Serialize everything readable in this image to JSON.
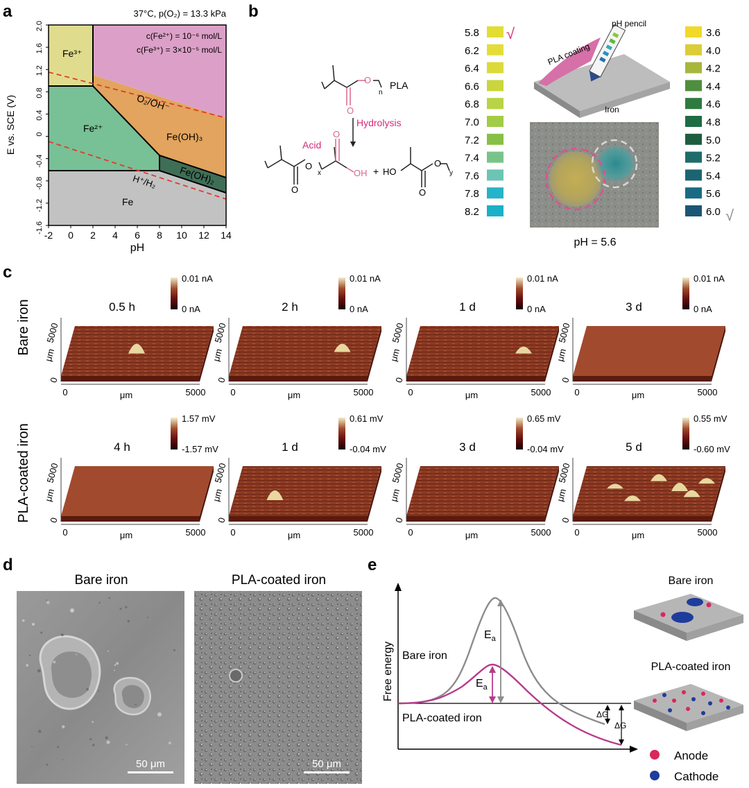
{
  "panels": {
    "a": {
      "letter": "a",
      "conditions": "37°C, p(O₂) = 13.3 kPa",
      "conc_fe2": "c(Fe²⁺) = 10⁻⁶ mol/L",
      "conc_fe3": "c(Fe³⁺) = 3×10⁻⁵ mol/L",
      "ylabel": "E vs. SCE (V)",
      "xlabel": "pH",
      "xticks": [
        "-2",
        "0",
        "2",
        "4",
        "6",
        "8",
        "10",
        "12",
        "14"
      ],
      "yticks": [
        "2.0",
        "1.6",
        "1.2",
        "0.8",
        "0.4",
        "0",
        "-0.4",
        "-0.8",
        "-1.2",
        "-1.6"
      ],
      "regions": {
        "fe3": "Fe³⁺",
        "fe2": "Fe²⁺",
        "o2": "O₂/OH⁻",
        "feoh3": "Fe(OH)₃",
        "feoh2": "Fe(OH)₂",
        "h2": "H⁺/H₂",
        "fe": "Fe"
      },
      "colors": {
        "fe3": "#e0dc8e",
        "o2": "#dca0c8",
        "fe2": "#78c096",
        "feoh3": "#e2a45e",
        "feoh2": "#3f6e56",
        "fe": "#c2c2c2",
        "dash": "#e23a2a"
      }
    },
    "b": {
      "letter": "b",
      "pla_label": "PLA",
      "subscript_n": "n",
      "subscript_x": "x",
      "subscript_y": "y",
      "hydrolysis": "Hydrolysis",
      "acid": "Acid",
      "oh": "OH",
      "ho": "HO",
      "plus": "+",
      "o": "O",
      "left_scale": [
        {
          "label": "5.8",
          "color": "#e3dd32"
        },
        {
          "label": "6.2",
          "color": "#e3dd3a"
        },
        {
          "label": "6.4",
          "color": "#dcda3a"
        },
        {
          "label": "6.6",
          "color": "#cad63c"
        },
        {
          "label": "6.8",
          "color": "#b8d446"
        },
        {
          "label": "7.0",
          "color": "#a2cc46"
        },
        {
          "label": "7.2",
          "color": "#86c046"
        },
        {
          "label": "7.4",
          "color": "#78c488"
        },
        {
          "label": "7.6",
          "color": "#6cc4b4"
        },
        {
          "label": "7.8",
          "color": "#24b4c8"
        },
        {
          "label": "8.2",
          "color": "#1ab0c8"
        }
      ],
      "right_scale": [
        {
          "label": "3.6",
          "color": "#f2d82a"
        },
        {
          "label": "4.0",
          "color": "#dccc38"
        },
        {
          "label": "4.2",
          "color": "#a8b63c"
        },
        {
          "label": "4.4",
          "color": "#4e8e3e"
        },
        {
          "label": "4.6",
          "color": "#2e7a40"
        },
        {
          "label": "4.8",
          "color": "#1e6c44"
        },
        {
          "label": "5.0",
          "color": "#1c5e3e"
        },
        {
          "label": "5.2",
          "color": "#1e6c6a"
        },
        {
          "label": "5.4",
          "color": "#1c6470"
        },
        {
          "label": "5.6",
          "color": "#1a6a86"
        },
        {
          "label": "6.0",
          "color": "#1c5676"
        }
      ],
      "check": "√",
      "pla_coating": "PLA coating",
      "ph_pencil": "pH pencil",
      "iron": "Iron",
      "ph_result": "pH = 5.6"
    },
    "c": {
      "letter": "c",
      "row1_label": "Bare iron",
      "row2_label": "PLA-coated iron",
      "axis_um": "μm",
      "tick_0": "0",
      "tick_5000": "5000",
      "row1": [
        {
          "time": "0.5 h",
          "cb_max": "0.01 nA",
          "cb_min": "0 nA"
        },
        {
          "time": "2 h",
          "cb_max": "0.01 nA",
          "cb_min": "0 nA"
        },
        {
          "time": "1 d",
          "cb_max": "0.01 nA",
          "cb_min": "0 nA"
        },
        {
          "time": "3 d",
          "cb_max": "0.01 nA",
          "cb_min": "0 nA"
        }
      ],
      "row2": [
        {
          "time": "4 h",
          "cb_max": "1.57 mV",
          "cb_min": "-1.57 mV"
        },
        {
          "time": "1 d",
          "cb_max": "0.61 mV",
          "cb_min": "-0.04 mV"
        },
        {
          "time": "3 d",
          "cb_max": "0.65 mV",
          "cb_min": "-0.04 mV"
        },
        {
          "time": "5 d",
          "cb_max": "0.55 mV",
          "cb_min": "-0.60 mV"
        }
      ]
    },
    "d": {
      "letter": "d",
      "left_title": "Bare iron",
      "right_title": "PLA-coated iron",
      "scale": "50 μm"
    },
    "e": {
      "letter": "e",
      "ylabel": "Free energy",
      "bare_iron": "Bare iron",
      "pla_iron": "PLA-coated iron",
      "ea": "E",
      "ea_sub": "a",
      "dg": "ΔG",
      "legend_bare": "Bare iron",
      "legend_pla": "PLA-coated iron",
      "anode": "Anode",
      "cathode": "Cathode",
      "colors": {
        "bare": "#8c8c8c",
        "pla": "#b83c8c",
        "anode": "#d8285c",
        "cathode": "#1e3c9c"
      }
    }
  }
}
